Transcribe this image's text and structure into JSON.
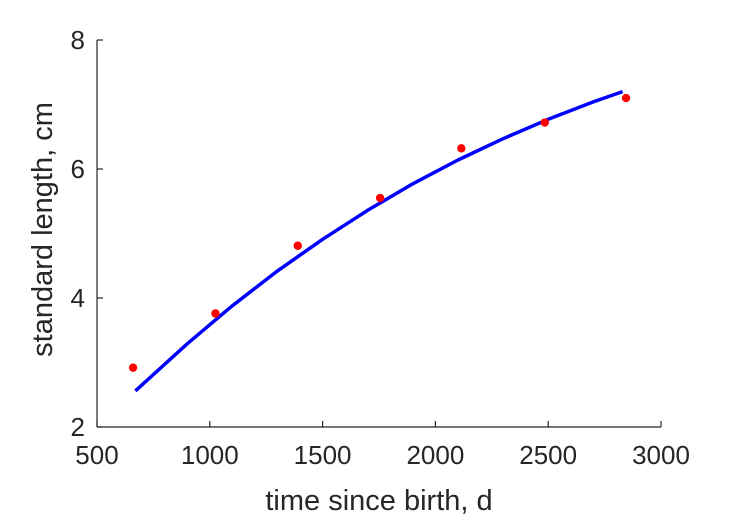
{
  "chart_data": {
    "type": "scatter",
    "title": "",
    "xlabel": "time since birth, d",
    "ylabel": "standard length, cm",
    "xlim": [
      500,
      3000
    ],
    "ylim": [
      2,
      8
    ],
    "xticks": [
      500,
      1000,
      1500,
      2000,
      2500,
      3000
    ],
    "yticks": [
      2,
      4,
      6,
      8
    ],
    "xtick_labels": [
      "500",
      "1000",
      "1500",
      "2000",
      "2500",
      "3000"
    ],
    "ytick_labels": [
      "2",
      "4",
      "6",
      "8"
    ],
    "grid": false,
    "legend": "none",
    "series": [
      {
        "type": "scatter",
        "color": "#ff0000",
        "x": [
          660,
          1025,
          1390,
          1755,
          2115,
          2485,
          2845
        ],
        "y": [
          2.92,
          3.76,
          4.81,
          5.55,
          6.32,
          6.72,
          7.1
        ]
      },
      {
        "type": "line",
        "color": "#0000ff",
        "x": [
          670,
          900,
          1100,
          1300,
          1500,
          1700,
          1900,
          2100,
          2300,
          2500,
          2700,
          2830
        ],
        "y": [
          2.56,
          3.29,
          3.88,
          4.42,
          4.91,
          5.36,
          5.77,
          6.14,
          6.47,
          6.77,
          7.04,
          7.2
        ]
      }
    ]
  }
}
